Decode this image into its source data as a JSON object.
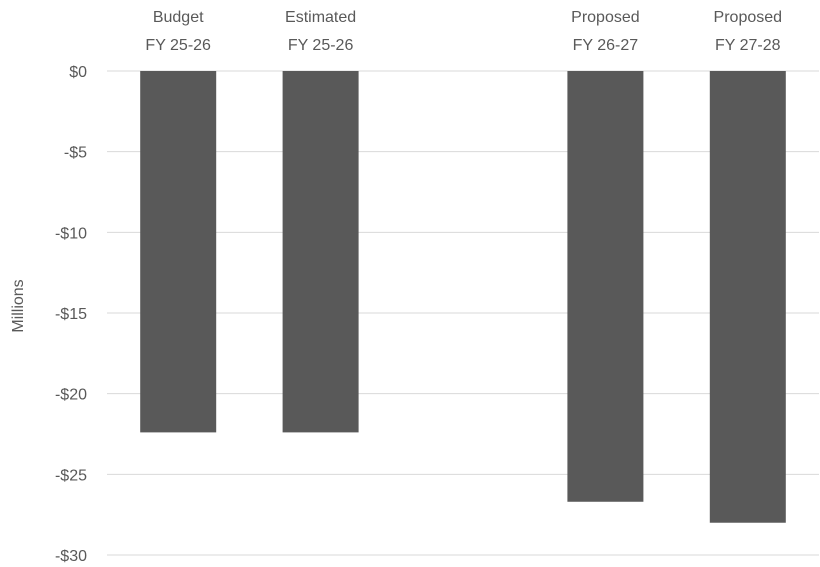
{
  "chart_data": {
    "type": "bar",
    "title": "",
    "xlabel": "",
    "ylabel": "Millions",
    "categories": [
      [
        "Budget",
        "FY 25-26"
      ],
      [
        "Estimated",
        "FY 25-26"
      ],
      [
        "",
        ""
      ],
      [
        "Proposed",
        "FY 26-27"
      ],
      [
        "Proposed",
        "FY 27-28"
      ]
    ],
    "values": [
      -22.4,
      -22.4,
      null,
      -26.7,
      -28.0
    ],
    "ylim": [
      -30,
      0
    ],
    "yticks": [
      0,
      -5,
      -10,
      -15,
      -20,
      -25,
      -30
    ],
    "ytick_labels": [
      "$0",
      "-$5",
      "-$10",
      "-$15",
      "-$20",
      "-$25",
      "-$30"
    ],
    "grid": true,
    "legend": "none",
    "bar_color": "#595959",
    "category_labels_position": "top"
  }
}
